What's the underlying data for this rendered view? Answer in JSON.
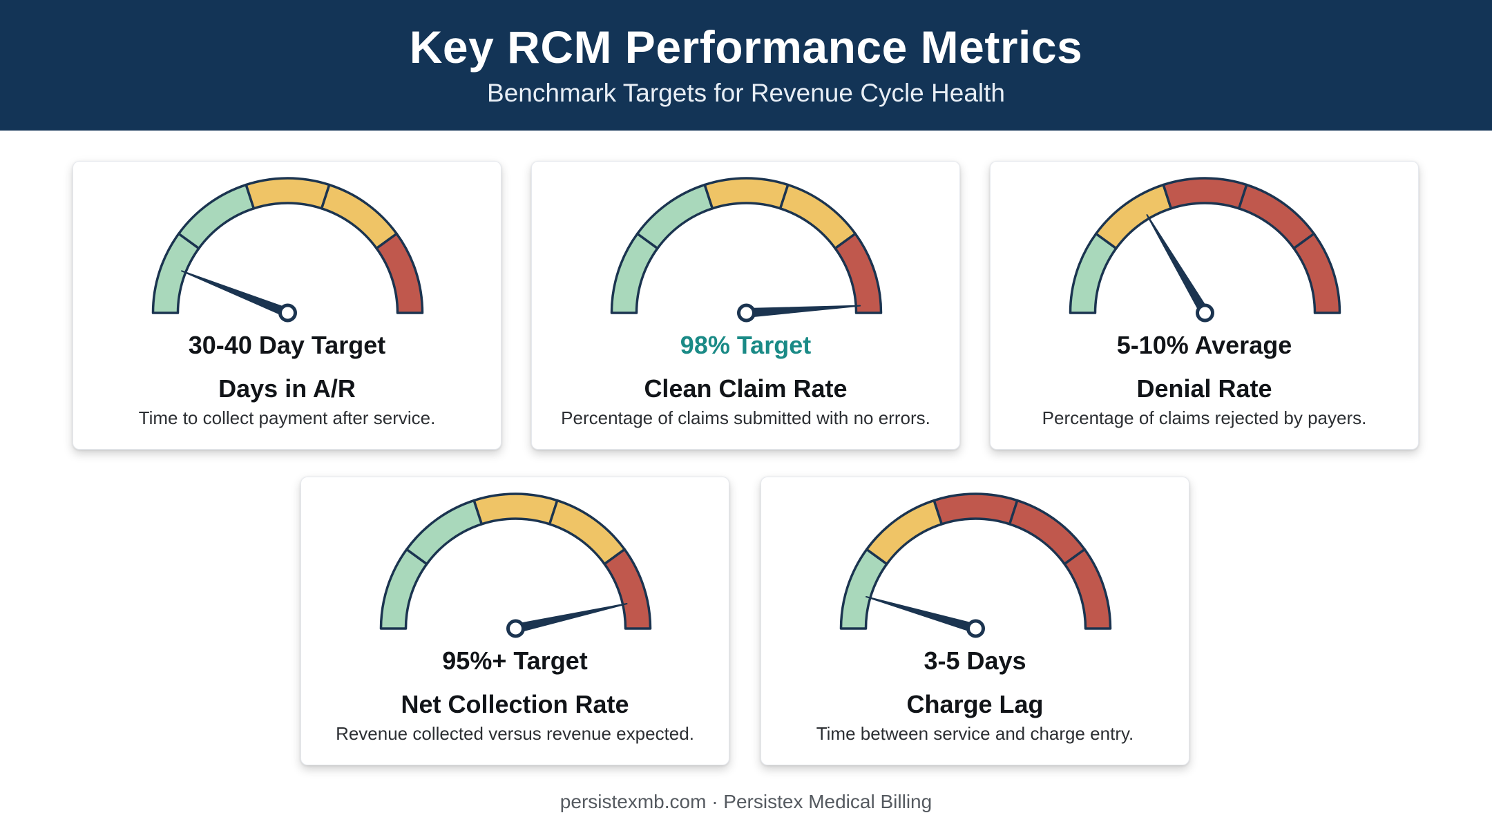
{
  "header": {
    "title": "Key RCM Performance Metrics",
    "subtitle": "Benchmark Targets for Revenue Cycle Health"
  },
  "colors": {
    "header_bg": "#133456",
    "green": "#a9d8bb",
    "yellow": "#efc466",
    "red": "#c0584d",
    "outline": "#1b3450",
    "teal_text": "#1a8a86"
  },
  "cards": [
    {
      "target": "30-40 Day Target",
      "name": "Days in A/R",
      "description": "Time to collect payment after service.",
      "zones": [
        "green",
        "green",
        "yellow",
        "yellow",
        "red"
      ],
      "needle_level": 0.12,
      "target_color": "default"
    },
    {
      "target": "98% Target",
      "name": "Clean Claim Rate",
      "description": "Percentage of claims submitted with no errors.",
      "zones": [
        "green",
        "green",
        "yellow",
        "yellow",
        "red"
      ],
      "needle_level": 0.98,
      "target_color": "teal"
    },
    {
      "target": "5-10% Average",
      "name": "Denial Rate",
      "description": "Percentage of claims rejected by payers.",
      "zones": [
        "green",
        "yellow",
        "red",
        "red",
        "red"
      ],
      "needle_level": 0.33,
      "target_color": "default"
    },
    {
      "target": "95%+ Target",
      "name": "Net Collection Rate",
      "description": "Revenue collected versus revenue expected.",
      "zones": [
        "green",
        "green",
        "yellow",
        "yellow",
        "red"
      ],
      "needle_level": 0.93,
      "target_color": "default"
    },
    {
      "target": "3-5 Days",
      "name": "Charge Lag",
      "description": "Time between service and charge entry.",
      "zones": [
        "green",
        "yellow",
        "red",
        "red",
        "red"
      ],
      "needle_level": 0.09,
      "target_color": "default"
    }
  ],
  "footer": "persistexmb.com · Persistex Medical Billing"
}
